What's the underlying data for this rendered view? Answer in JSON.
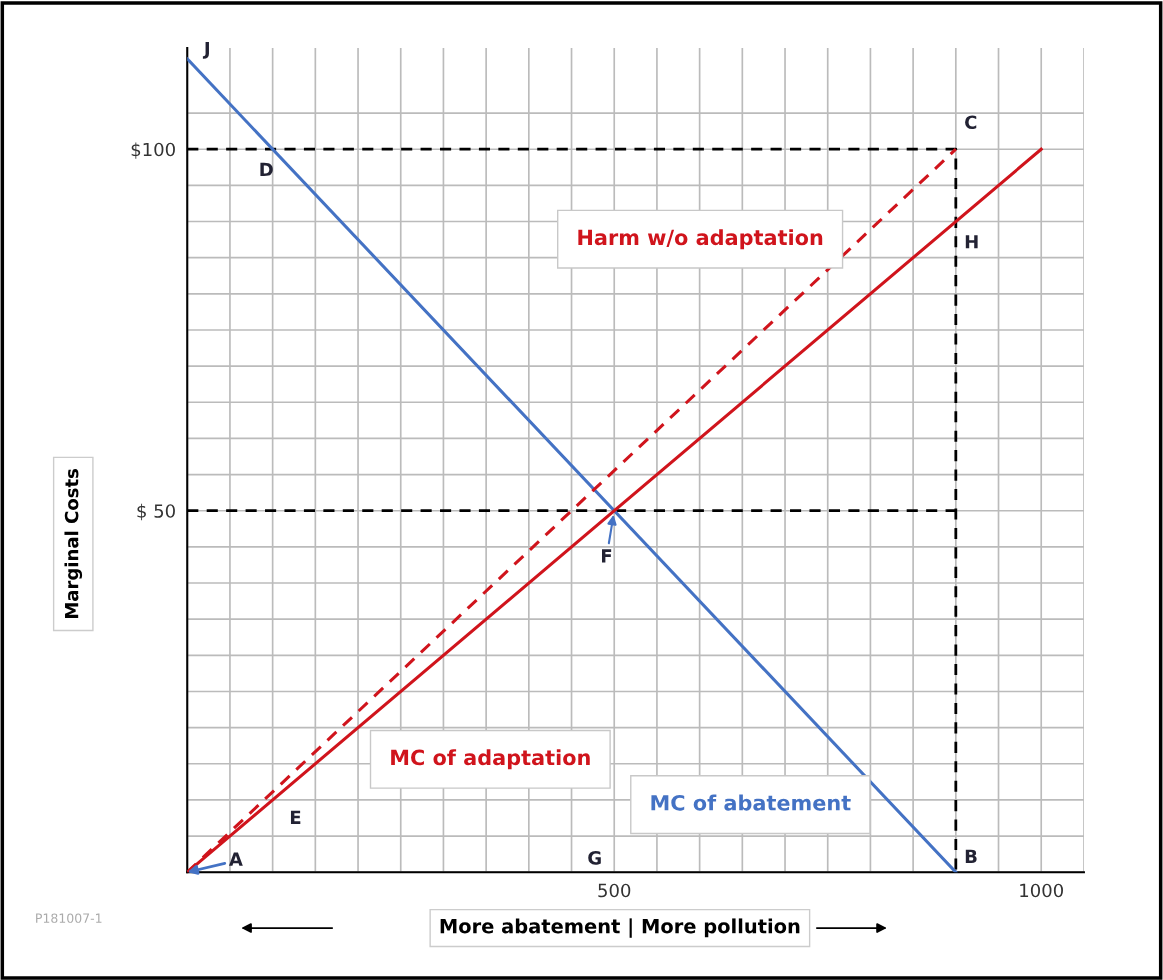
{
  "chart_data": {
    "type": "line",
    "xlabel": "More abatement | More pollution",
    "ylabel": "Marginal Costs",
    "xlim": [
      0,
      1050
    ],
    "ylim": [
      0,
      114
    ],
    "xticks": [
      {
        "value": 0,
        "label": null
      },
      {
        "value": 50,
        "label": null
      },
      {
        "value": 100,
        "label": null
      },
      {
        "value": 150,
        "label": null
      },
      {
        "value": 200,
        "label": null
      },
      {
        "value": 250,
        "label": null
      },
      {
        "value": 300,
        "label": null
      },
      {
        "value": 350,
        "label": null
      },
      {
        "value": 400,
        "label": null
      },
      {
        "value": 450,
        "label": null
      },
      500,
      {
        "value": 550,
        "label": null
      },
      {
        "value": 600,
        "label": null
      },
      {
        "value": 650,
        "label": null
      },
      {
        "value": 700,
        "label": null
      },
      {
        "value": 750,
        "label": null
      },
      {
        "value": 800,
        "label": null
      },
      {
        "value": 850,
        "label": null
      },
      {
        "value": 900,
        "label": null
      },
      {
        "value": 950,
        "label": null
      },
      1000,
      {
        "value": 1050,
        "label": null
      }
    ],
    "yticks": [
      {
        "value": 0,
        "label": null
      },
      {
        "value": 5,
        "label": null
      },
      {
        "value": 10,
        "label": null
      },
      {
        "value": 15,
        "label": null
      },
      {
        "value": 20,
        "label": null
      },
      {
        "value": 25,
        "label": null
      },
      {
        "value": 30,
        "label": null
      },
      {
        "value": 35,
        "label": null
      },
      {
        "value": 40,
        "label": null
      },
      {
        "value": 45,
        "label": null
      },
      {
        "value": 50,
        "label": "$ 50"
      },
      {
        "value": 55,
        "label": null
      },
      {
        "value": 60,
        "label": null
      },
      {
        "value": 65,
        "label": null
      },
      {
        "value": 70,
        "label": null
      },
      {
        "value": 75,
        "label": null
      },
      {
        "value": 80,
        "label": null
      },
      {
        "value": 85,
        "label": null
      },
      {
        "value": 90,
        "label": null
      },
      {
        "value": 95,
        "label": null
      },
      {
        "value": 100,
        "label": "$100"
      },
      {
        "value": 105,
        "label": null
      }
    ],
    "grid": true,
    "marker": "none",
    "series": [
      {
        "name": "MC of abatement",
        "color": "#4472c4",
        "x": [
          0,
          900
        ],
        "values": [
          112.5,
          0
        ],
        "line_style": "solid"
      },
      {
        "name": "MC of adaptation",
        "color": "#d0141c",
        "x": [
          0,
          1000
        ],
        "values": [
          0,
          100
        ],
        "line_style": "solid"
      },
      {
        "name": "Harm w/o adaptation",
        "color": "#d0141c",
        "x": [
          0,
          900
        ],
        "values": [
          0,
          100
        ],
        "line_style": "dashed"
      },
      {
        "color": "#000000",
        "x": [
          0,
          900,
          900
        ],
        "values": [
          100,
          100,
          0
        ],
        "line_style": "dashed"
      },
      {
        "color": "#000000",
        "x": [
          0,
          900
        ],
        "values": [
          50,
          50
        ],
        "line_style": "dashed"
      }
    ],
    "annotations": [
      {
        "text": "J",
        "x": 0,
        "y": 112.5
      },
      {
        "text": "D",
        "x": 100,
        "y": 100
      },
      {
        "text": "C",
        "x": 900,
        "y": 100
      },
      {
        "text": "H",
        "x": 900,
        "y": 90
      },
      {
        "text": "F",
        "x": 500,
        "y": 50
      },
      {
        "text": "E",
        "x": 100,
        "y": 10
      },
      {
        "text": "A",
        "x": 0,
        "y": 0
      },
      "G",
      {
        "text": "B",
        "x": 900,
        "y": 0
      },
      "P181007-1"
    ]
  }
}
